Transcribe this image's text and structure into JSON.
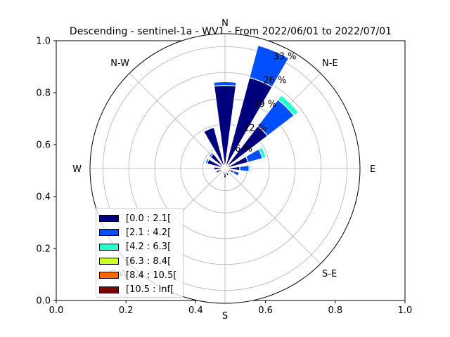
{
  "chart_data": {
    "type": "windrose",
    "title": "Descending - sentinel-1a - WV1 - From 2022/06/01 to 2022/07/01",
    "cartesian_axes": {
      "xlim": [
        0,
        1
      ],
      "ylim": [
        0,
        1
      ],
      "xticks": [
        "0.0",
        "0.2",
        "0.4",
        "0.6",
        "0.8",
        "1.0"
      ],
      "yticks": [
        "0.0",
        "0.2",
        "0.4",
        "0.6",
        "0.8",
        "1.0"
      ]
    },
    "direction_labels": [
      "N",
      "N-E",
      "E",
      "S-E",
      "S",
      "S-W",
      "W",
      "N-W"
    ],
    "radial_ticks": [
      {
        "value": 6,
        "label": "6 %"
      },
      {
        "value": 12,
        "label": "12 %"
      },
      {
        "value": 19,
        "label": "19 %"
      },
      {
        "value": 26,
        "label": "26 %"
      },
      {
        "value": 33,
        "label": "33 %"
      }
    ],
    "radial_max": 36.5,
    "legend": {
      "placement": "lower-left",
      "entries": [
        {
          "label": "[0.0 : 2.1[",
          "color": "#00007f"
        },
        {
          "label": "[2.1 : 4.2[",
          "color": "#0050ff"
        },
        {
          "label": "[4.2 : 6.3[",
          "color": "#29ffce"
        },
        {
          "label": "[6.3 : 8.4[",
          "color": "#ceff29"
        },
        {
          "label": "[8.4 : 10.5[",
          "color": "#ff6800"
        },
        {
          "label": "[10.5 : inf[",
          "color": "#7f0000"
        }
      ]
    },
    "sector_width_deg": 15,
    "sectors": [
      {
        "direction_deg": 0,
        "cumulative": [
          22.5,
          23.5
        ]
      },
      {
        "direction_deg": 22.5,
        "cumulative": [
          25.5,
          34.5
        ]
      },
      {
        "direction_deg": 45,
        "cumulative": [
          14.5,
          23.5,
          25.0
        ]
      },
      {
        "direction_deg": 67.5,
        "cumulative": [
          6.5,
          10.5,
          11.5
        ]
      },
      {
        "direction_deg": 90,
        "cumulative": [
          4.0,
          6.5,
          7.0
        ]
      },
      {
        "direction_deg": 112.5,
        "cumulative": [
          2.5,
          4.0
        ]
      },
      {
        "direction_deg": 135,
        "cumulative": [
          1.5
        ]
      },
      {
        "direction_deg": 157.5,
        "cumulative": [
          2.0
        ]
      },
      {
        "direction_deg": 180,
        "cumulative": [
          2.5
        ]
      },
      {
        "direction_deg": 202.5,
        "cumulative": [
          1.5
        ]
      },
      {
        "direction_deg": 225,
        "cumulative": [
          1.0
        ]
      },
      {
        "direction_deg": 247.5,
        "cumulative": [
          2.5
        ]
      },
      {
        "direction_deg": 270,
        "cumulative": [
          3.0
        ]
      },
      {
        "direction_deg": 292.5,
        "cumulative": [
          5.0,
          5.5
        ]
      },
      {
        "direction_deg": 315,
        "cumulative": [
          5.0,
          5.5
        ]
      },
      {
        "direction_deg": 337.5,
        "cumulative": [
          11.5
        ]
      }
    ]
  }
}
